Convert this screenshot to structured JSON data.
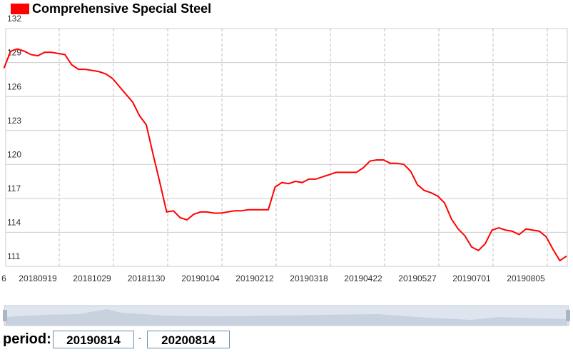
{
  "chart_data": {
    "type": "line",
    "title": "Comprehensive Special Steel",
    "categories": [
      "6",
      null,
      null,
      null,
      null,
      "20180919",
      null,
      null,
      null,
      null,
      null,
      null,
      null,
      "20181029",
      null,
      null,
      null,
      null,
      null,
      null,
      null,
      "20181130",
      null,
      null,
      null,
      null,
      null,
      null,
      null,
      "20190104",
      null,
      null,
      null,
      null,
      null,
      null,
      null,
      "20190212",
      null,
      null,
      null,
      null,
      null,
      null,
      null,
      "20190318",
      null,
      null,
      null,
      null,
      null,
      null,
      null,
      "20190422",
      null,
      null,
      null,
      null,
      null,
      null,
      null,
      "20190527",
      null,
      null,
      null,
      null,
      null,
      null,
      null,
      "20190701",
      null,
      null,
      null,
      null,
      null,
      null,
      null,
      "20190805",
      null,
      null,
      null,
      null,
      null,
      null
    ],
    "series": [
      {
        "name": "Comprehensive Special Steel",
        "color": "#ff0000",
        "values": [
          128.5,
          130.0,
          130.2,
          130.0,
          129.7,
          129.6,
          129.9,
          129.9,
          129.8,
          129.7,
          128.8,
          128.4,
          128.4,
          128.3,
          128.2,
          128.0,
          127.6,
          126.9,
          126.2,
          125.5,
          124.3,
          123.5,
          120.9,
          118.4,
          115.8,
          115.9,
          115.3,
          115.1,
          115.6,
          115.8,
          115.8,
          115.7,
          115.7,
          115.8,
          115.9,
          115.9,
          116.0,
          116.0,
          116.0,
          116.0,
          118.0,
          118.4,
          118.3,
          118.5,
          118.4,
          118.7,
          118.7,
          118.9,
          119.1,
          119.3,
          119.3,
          119.3,
          119.3,
          119.7,
          120.3,
          120.4,
          120.4,
          120.1,
          120.1,
          120.0,
          119.4,
          118.2,
          117.7,
          117.5,
          117.2,
          116.6,
          115.2,
          114.3,
          113.7,
          112.7,
          112.4,
          113.0,
          114.2,
          114.4,
          114.2,
          114.1,
          113.8,
          114.3,
          114.2,
          114.1,
          113.6,
          112.5,
          111.5,
          111.9
        ]
      }
    ],
    "ylim": [
      111,
      132
    ],
    "yticks": [
      111,
      114,
      117,
      120,
      123,
      126,
      129,
      132
    ],
    "grid": true
  },
  "period": {
    "label": "period:",
    "start": "20190814",
    "separator": "-",
    "end": "20200814"
  }
}
